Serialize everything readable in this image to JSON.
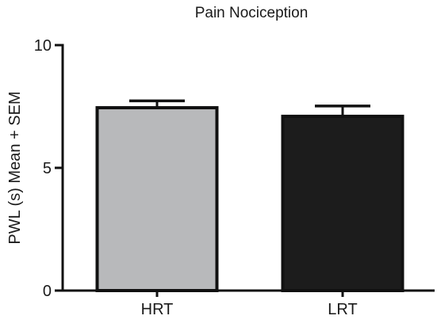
{
  "chart_data": {
    "type": "bar",
    "title": "Pain Nociception",
    "xlabel": "",
    "ylabel": "PWL  (s) Mean + SEM",
    "ylim": [
      0,
      10
    ],
    "yticks": [
      0,
      5,
      10
    ],
    "grid": false,
    "categories": [
      "HRT",
      "LRT"
    ],
    "values": [
      7.45,
      7.1
    ],
    "errors": [
      0.28,
      0.42
    ],
    "error_type": "SEM",
    "colors": [
      "#b8b9bb",
      "#1c1c1c"
    ],
    "edge_color": "#111111"
  }
}
